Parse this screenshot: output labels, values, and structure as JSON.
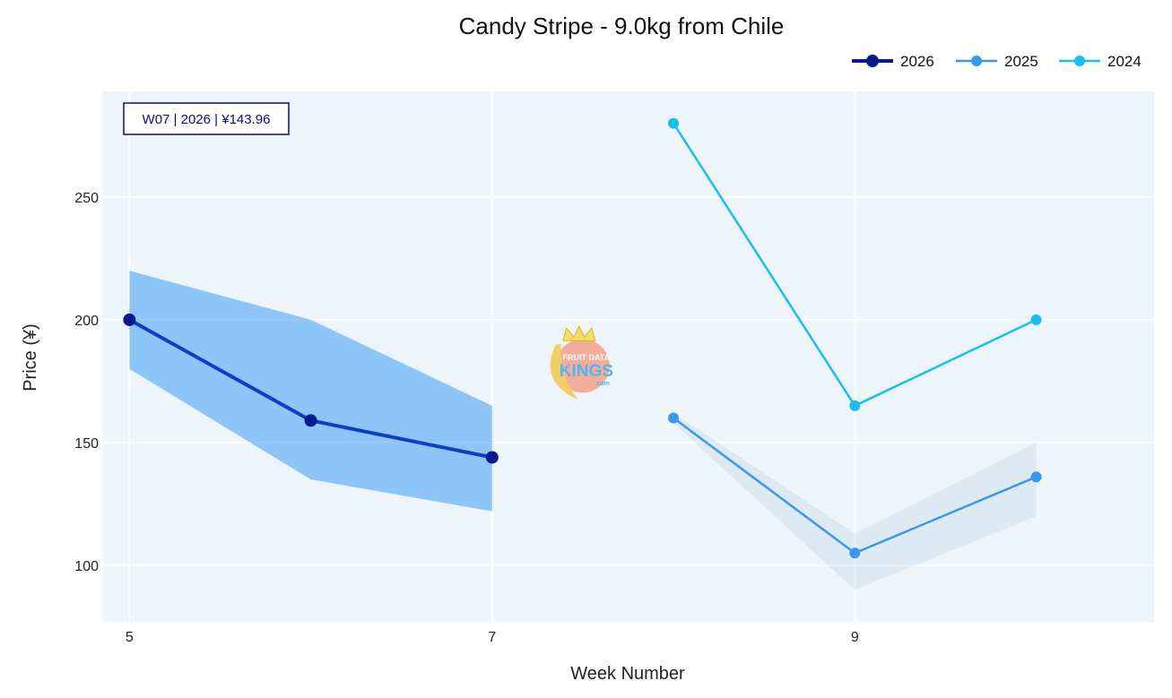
{
  "chart_data": {
    "type": "line",
    "title": "Candy Stripe - 9.0kg from Chile",
    "xlabel": "Week Number",
    "ylabel": "Price (¥)",
    "xlim": [
      4.85,
      10.65
    ],
    "ylim": [
      77,
      293
    ],
    "x_ticks": [
      5,
      7,
      9
    ],
    "y_ticks": [
      100,
      150,
      200,
      250
    ],
    "grid": true,
    "legend": "top-right",
    "annotation": {
      "text": "W07 | 2026 | ¥143.96",
      "color": "#0a0a80"
    },
    "watermark": {
      "line1": "FRUIT DATA",
      "line2": "KINGS",
      "line3": ".com"
    },
    "bands": [
      {
        "series": "2026",
        "x": [
          5,
          6,
          7
        ],
        "low": [
          180,
          135,
          122
        ],
        "high": [
          220,
          200,
          165
        ],
        "color": "#5aaaf8",
        "opacity": 0.65
      },
      {
        "series": "2025",
        "x": [
          8,
          9,
          10
        ],
        "low": [
          158,
          90,
          120
        ],
        "high": [
          162,
          113,
          150
        ],
        "color": "#c9ddea",
        "opacity": 0.45
      }
    ],
    "series": [
      {
        "name": "2026",
        "x": [
          5,
          6,
          7
        ],
        "values": [
          200,
          159,
          143.96
        ],
        "color": "#0d3fc4",
        "marker_color": "#0a1a8c",
        "line_width": 4,
        "marker_r": 7
      },
      {
        "name": "2025",
        "x": [
          8,
          9,
          10
        ],
        "values": [
          160,
          105,
          136
        ],
        "color": "#3a97ef",
        "marker_color": "#3a97ef",
        "line_width": 2.5,
        "marker_r": 6
      },
      {
        "name": "2024",
        "x": [
          8,
          9,
          10
        ],
        "values": [
          280,
          165,
          200
        ],
        "color": "#17bff0",
        "marker_color": "#17bff0",
        "line_width": 2.5,
        "marker_r": 6
      }
    ],
    "legend_entries": [
      {
        "name": "2026",
        "color": "#0a1a8c"
      },
      {
        "name": "2025",
        "color": "#3a97ef"
      },
      {
        "name": "2024",
        "color": "#17bff0"
      }
    ]
  }
}
